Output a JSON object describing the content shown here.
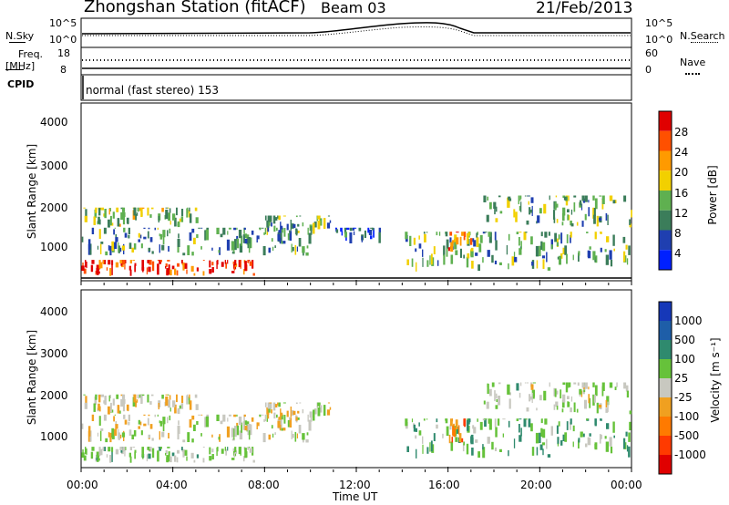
{
  "header": {
    "station": "Zhongshan Station (fitACF)",
    "beam": "Beam 03",
    "date": "21/Feb/2013"
  },
  "status_panels": {
    "nsky_label": "N.Sky",
    "nsearch_label": "N.Search",
    "freq_label": "Freq.",
    "freq_unit": "[MHz]",
    "nave_label": "Nave",
    "cpid_label": "CPID",
    "noise_ticks": [
      "10^5",
      "10^0"
    ],
    "noise_ticks_right": [
      "10^5",
      "10^0"
    ],
    "freq_ticks": [
      "18",
      "8"
    ],
    "nave_ticks": [
      "60",
      "0"
    ],
    "cpid_text": "normal (fast stereo) 153"
  },
  "axes": {
    "ylabel": "Slant Range [km]",
    "yticks": [
      "4000",
      "3000",
      "2000",
      "1000"
    ],
    "xlabel": "Time UT",
    "xticks": [
      "00:00",
      "04:00",
      "08:00",
      "12:00",
      "16:00",
      "20:00",
      "00:00"
    ]
  },
  "colorbars": {
    "power": {
      "label": "Power [dB]",
      "ticks": [
        "28",
        "24",
        "20",
        "16",
        "12",
        "8",
        "4"
      ],
      "colors": [
        "#e00000",
        "#ff5000",
        "#ff9a00",
        "#f2d000",
        "#5fb050",
        "#3b7d5a",
        "#1f3fb0",
        "#0020ff"
      ]
    },
    "velocity": {
      "label": "Velocity [m s⁻¹]",
      "ticks": [
        "1000",
        "500",
        "100",
        "25",
        "-25",
        "-100",
        "-500",
        "-1000"
      ],
      "colors": [
        "#1638b8",
        "#1e5ea8",
        "#2f8a6e",
        "#66c23a",
        "#c8c8c0",
        "#f0a020",
        "#ff7a00",
        "#ff3a00",
        "#e00000"
      ]
    }
  },
  "chart_data": [
    {
      "type": "heatmap",
      "title": "Power",
      "x_range": [
        "00:00",
        "24:00"
      ],
      "y_range_km": [
        180,
        4600
      ],
      "value_range_db": [
        0,
        30
      ],
      "echo_regions": [
        {
          "t_start": 0.0,
          "t_end": 7.5,
          "r_min": 300,
          "r_max": 700,
          "db": 26
        },
        {
          "t_start": 0.0,
          "t_end": 10.0,
          "r_min": 800,
          "r_max": 1500,
          "db": 10
        },
        {
          "t_start": 0.0,
          "t_end": 5.0,
          "r_min": 1500,
          "r_max": 2000,
          "db": 14
        },
        {
          "t_start": 8.0,
          "t_end": 11.0,
          "r_min": 1300,
          "r_max": 1800,
          "db": 12
        },
        {
          "t_start": 11.0,
          "t_end": 13.0,
          "r_min": 1100,
          "r_max": 1500,
          "db": 6
        },
        {
          "t_start": 14.0,
          "t_end": 24.0,
          "r_min": 400,
          "r_max": 1400,
          "db": 12
        },
        {
          "t_start": 16.0,
          "t_end": 17.0,
          "r_min": 700,
          "r_max": 1400,
          "db": 22
        },
        {
          "t_start": 17.5,
          "t_end": 24.0,
          "r_min": 1500,
          "r_max": 2300,
          "db": 12
        }
      ]
    },
    {
      "type": "heatmap",
      "title": "Velocity",
      "x_range": [
        "00:00",
        "24:00"
      ],
      "y_range_km": [
        180,
        4600
      ],
      "value_range_ms": [
        -1000,
        1000
      ],
      "echo_regions": [
        {
          "t_start": 0.0,
          "t_end": 7.5,
          "r_min": 300,
          "r_max": 700,
          "v": 150
        },
        {
          "t_start": 0.0,
          "t_end": 10.0,
          "r_min": 800,
          "r_max": 1500,
          "v": 0
        },
        {
          "t_start": 0.0,
          "t_end": 5.0,
          "r_min": 1500,
          "r_max": 2000,
          "v": 0
        },
        {
          "t_start": 8.0,
          "t_end": 11.0,
          "r_min": 1300,
          "r_max": 1800,
          "v": 0
        },
        {
          "t_start": 14.0,
          "t_end": 24.0,
          "r_min": 400,
          "r_max": 1400,
          "v": 300
        },
        {
          "t_start": 16.0,
          "t_end": 17.0,
          "r_min": 700,
          "r_max": 1400,
          "v": -400
        },
        {
          "t_start": 17.5,
          "t_end": 24.0,
          "r_min": 1500,
          "r_max": 2300,
          "v": 100
        }
      ]
    }
  ]
}
